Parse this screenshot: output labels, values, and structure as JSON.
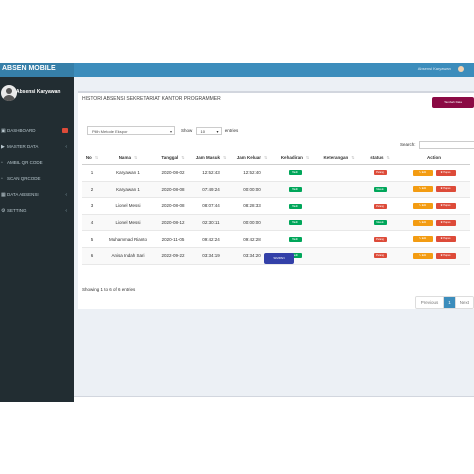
{
  "app": {
    "brand": "ABSEN MOBILE",
    "topbar_right": "Absensi Karyawan"
  },
  "sidebar": {
    "user_name": "Absensi Karyawan",
    "items": [
      {
        "label": "DASHBOARD",
        "icon": "dashboard-icon"
      },
      {
        "label": "MASTER DATA",
        "icon": "folder-icon"
      },
      {
        "label": "AMBIL QR CODE",
        "icon": "qr-icon"
      },
      {
        "label": "SCAN QRCODE",
        "icon": "scan-icon"
      },
      {
        "label": "DATA ABSENSI",
        "icon": "table-icon"
      },
      {
        "label": "SETTING",
        "icon": "gear-icon"
      }
    ]
  },
  "main": {
    "title": "HISTORI ABSENSI SEKRETARIAT KANTOR PROGRAMMER",
    "add_button": "Tambah Data",
    "filter_select": "Pilih Metode Ekspor",
    "show_label": "Show",
    "entries_value": "10",
    "entries_label": "entries",
    "search_label": "Search:",
    "columns": [
      "No",
      "Nama",
      "Tanggal",
      "Jam Masuk",
      "Jam Keluar",
      "Kehadiran",
      "Keterangan",
      "status",
      "Action"
    ],
    "rows": [
      {
        "no": "1",
        "nama": "Karyawan 1",
        "tanggal": "2020-08-02",
        "jam_masuk": "12:52:43",
        "jam_keluar": "12:52:40",
        "kehadiran": "Hadir",
        "keterangan": "",
        "status": "Pulang"
      },
      {
        "no": "2",
        "nama": "Karyawan 1",
        "tanggal": "2020-08-08",
        "jam_masuk": "07:49:24",
        "jam_keluar": "00:00:00",
        "kehadiran": "Hadir",
        "keterangan": "",
        "status": "Masuk"
      },
      {
        "no": "3",
        "nama": "Lionel Messi",
        "tanggal": "2020-08-08",
        "jam_masuk": "08:07:44",
        "jam_keluar": "08:28:33",
        "kehadiran": "Hadir",
        "keterangan": "",
        "status": "Pulang"
      },
      {
        "no": "4",
        "nama": "Lionel Messi",
        "tanggal": "2020-08-12",
        "jam_masuk": "02:30:11",
        "jam_keluar": "00:00:00",
        "kehadiran": "Hadir",
        "keterangan": "",
        "status": "Masuk"
      },
      {
        "no": "5",
        "nama": "Muhammad Rianto",
        "tanggal": "2020-11-05",
        "jam_masuk": "09:42:24",
        "jam_keluar": "09:42:28",
        "kehadiran": "Hadir",
        "keterangan": "",
        "status": "Pulang"
      },
      {
        "no": "6",
        "nama": "Anisa Indah Sari",
        "tanggal": "2022-09-22",
        "jam_masuk": "03:34:19",
        "jam_keluar": "03:34:20",
        "kehadiran": "Hadir",
        "keterangan": "",
        "status": "Pulang"
      }
    ],
    "edit_label": "Edit",
    "delete_label": "Hapus",
    "submit_button": "SIMPAN",
    "info": "Showing 1 to 6 of 6 entries",
    "pagination": {
      "previous": "Previous",
      "page": "1",
      "next": "Next"
    }
  },
  "colors": {
    "header": "#3c8dbc",
    "sidebar": "#222d32",
    "add_button": "#8b0a44",
    "submit_button": "#3340a8",
    "green": "#00a65a",
    "red": "#dd4b39",
    "orange": "#f39c12"
  }
}
